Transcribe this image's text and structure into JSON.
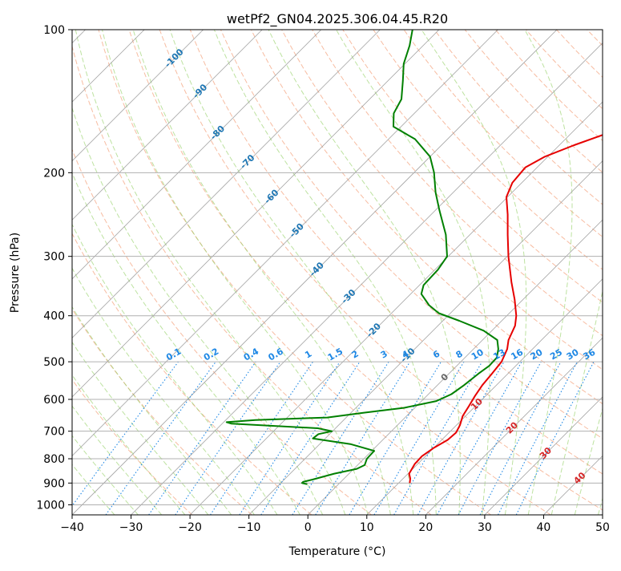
{
  "chart_data": {
    "type": "line",
    "title": "wetPf2_GN04.2025.306.04.45.R20",
    "xlabel": "Temperature (°C)",
    "ylabel": "Pressure (hPa)",
    "xlim": [
      -40,
      50
    ],
    "ylim": [
      1050,
      100
    ],
    "y_scale": "log",
    "grid": true,
    "x_ticks": [
      -40,
      -30,
      -20,
      -10,
      0,
      10,
      20,
      30,
      40,
      50
    ],
    "y_ticks": [
      100,
      200,
      300,
      400,
      500,
      600,
      700,
      800,
      900,
      1000
    ],
    "skew_lines": {
      "dry_adiabat_color": "#f4a582",
      "moist_adiabat_color": "#91cf60",
      "mixing_ratio_color": "#1e88e5",
      "isotherm_grid_color": "#999999"
    },
    "series": [
      {
        "color": "#e60000",
        "points": [
          {
            "p": 900,
            "t": 11.9
          },
          {
            "p": 880,
            "t": 11.2
          },
          {
            "p": 860,
            "t": 10.2
          },
          {
            "p": 820,
            "t": 9.5
          },
          {
            "p": 790,
            "t": 9.4
          },
          {
            "p": 760,
            "t": 10.0
          },
          {
            "p": 730,
            "t": 11.0
          },
          {
            "p": 705,
            "t": 11.2
          },
          {
            "p": 680,
            "t": 10.6
          },
          {
            "p": 650,
            "t": 9.5
          },
          {
            "p": 620,
            "t": 8.9
          },
          {
            "p": 590,
            "t": 8.2
          },
          {
            "p": 560,
            "t": 7.6
          },
          {
            "p": 530,
            "t": 7.3
          },
          {
            "p": 500,
            "t": 6.9
          },
          {
            "p": 470,
            "t": 5.7
          },
          {
            "p": 450,
            "t": 4.4
          },
          {
            "p": 420,
            "t": 3.1
          },
          {
            "p": 400,
            "t": 1.6
          },
          {
            "p": 370,
            "t": -1.4
          },
          {
            "p": 340,
            "t": -4.9
          },
          {
            "p": 300,
            "t": -9.8
          },
          {
            "p": 270,
            "t": -13.6
          },
          {
            "p": 245,
            "t": -17.0
          },
          {
            "p": 225,
            "t": -20.2
          },
          {
            "p": 210,
            "t": -21.6
          },
          {
            "p": 195,
            "t": -22.0
          },
          {
            "p": 185,
            "t": -20.5
          },
          {
            "p": 175,
            "t": -17.5
          },
          {
            "p": 165,
            "t": -13.8
          },
          {
            "p": 155,
            "t": -11.7
          },
          {
            "p": 145,
            "t": -10.6
          },
          {
            "p": 135,
            "t": -9.1
          },
          {
            "p": 125,
            "t": -6.9
          },
          {
            "p": 115,
            "t": -5.6
          },
          {
            "p": 108,
            "t": -5.1
          },
          {
            "p": 100,
            "t": -5.4
          }
        ]
      },
      {
        "color": "#008000",
        "points": [
          {
            "p": 905,
            "t": -5.3
          },
          {
            "p": 900,
            "t": -6.4
          },
          {
            "p": 895,
            "t": -6.4
          },
          {
            "p": 885,
            "t": -5.2
          },
          {
            "p": 860,
            "t": -2.5
          },
          {
            "p": 840,
            "t": 0.5
          },
          {
            "p": 825,
            "t": 1.2
          },
          {
            "p": 800,
            "t": 0.5
          },
          {
            "p": 770,
            "t": 0.4
          },
          {
            "p": 745,
            "t": -4.8
          },
          {
            "p": 725,
            "t": -12.1
          },
          {
            "p": 710,
            "t": -11.9
          },
          {
            "p": 700,
            "t": -10.1
          },
          {
            "p": 690,
            "t": -13.0
          },
          {
            "p": 675,
            "t": -28.4
          },
          {
            "p": 670,
            "t": -29.5
          },
          {
            "p": 663,
            "t": -25.0
          },
          {
            "p": 655,
            "t": -13.2
          },
          {
            "p": 640,
            "t": -7.8
          },
          {
            "p": 625,
            "t": -1.8
          },
          {
            "p": 605,
            "t": 2.5
          },
          {
            "p": 585,
            "t": 3.9
          },
          {
            "p": 560,
            "t": 4.5
          },
          {
            "p": 530,
            "t": 5.0
          },
          {
            "p": 510,
            "t": 5.5
          },
          {
            "p": 490,
            "t": 5.4
          },
          {
            "p": 470,
            "t": 4.2
          },
          {
            "p": 450,
            "t": 2.5
          },
          {
            "p": 430,
            "t": -1.4
          },
          {
            "p": 410,
            "t": -7.2
          },
          {
            "p": 395,
            "t": -12.0
          },
          {
            "p": 380,
            "t": -15.0
          },
          {
            "p": 360,
            "t": -18.2
          },
          {
            "p": 345,
            "t": -19.3
          },
          {
            "p": 320,
            "t": -19.5
          },
          {
            "p": 300,
            "t": -20.2
          },
          {
            "p": 270,
            "t": -24.1
          },
          {
            "p": 240,
            "t": -29.3
          },
          {
            "p": 220,
            "t": -33.0
          },
          {
            "p": 200,
            "t": -36.6
          },
          {
            "p": 185,
            "t": -40.0
          },
          {
            "p": 170,
            "t": -45.5
          },
          {
            "p": 160,
            "t": -51.3
          },
          {
            "p": 150,
            "t": -53.5
          },
          {
            "p": 140,
            "t": -54.6
          },
          {
            "p": 128,
            "t": -57.5
          },
          {
            "p": 118,
            "t": -60.2
          },
          {
            "p": 108,
            "t": -62.3
          },
          {
            "p": 100,
            "t": -64.5
          }
        ]
      }
    ],
    "isotherm_labels": [
      {
        "t": -100,
        "p": 115
      },
      {
        "t": -90,
        "p": 135
      },
      {
        "t": -80,
        "p": 165
      },
      {
        "t": -70,
        "p": 190
      },
      {
        "t": -60,
        "p": 225
      },
      {
        "t": -50,
        "p": 265
      },
      {
        "t": -40,
        "p": 320
      },
      {
        "t": -30,
        "p": 365
      },
      {
        "t": -20,
        "p": 430
      },
      {
        "t": -10,
        "p": 485
      },
      {
        "t": 0,
        "p": 540
      },
      {
        "t": 10,
        "p": 615
      },
      {
        "t": 20,
        "p": 690
      },
      {
        "t": 30,
        "p": 780
      },
      {
        "t": 40,
        "p": 880
      }
    ],
    "mixing_ratio_labels": [
      "0.1",
      "0.2",
      "0.4",
      "0.6",
      "1",
      "1.5",
      "2",
      "3",
      "4",
      "6",
      "8",
      "10",
      "13",
      "16",
      "20",
      "25",
      "30",
      "36"
    ],
    "mixing_ratio_values": [
      0.1,
      0.2,
      0.4,
      0.6,
      1,
      1.5,
      2,
      3,
      4,
      6,
      8,
      10,
      13,
      16,
      20,
      25,
      30,
      36
    ]
  }
}
